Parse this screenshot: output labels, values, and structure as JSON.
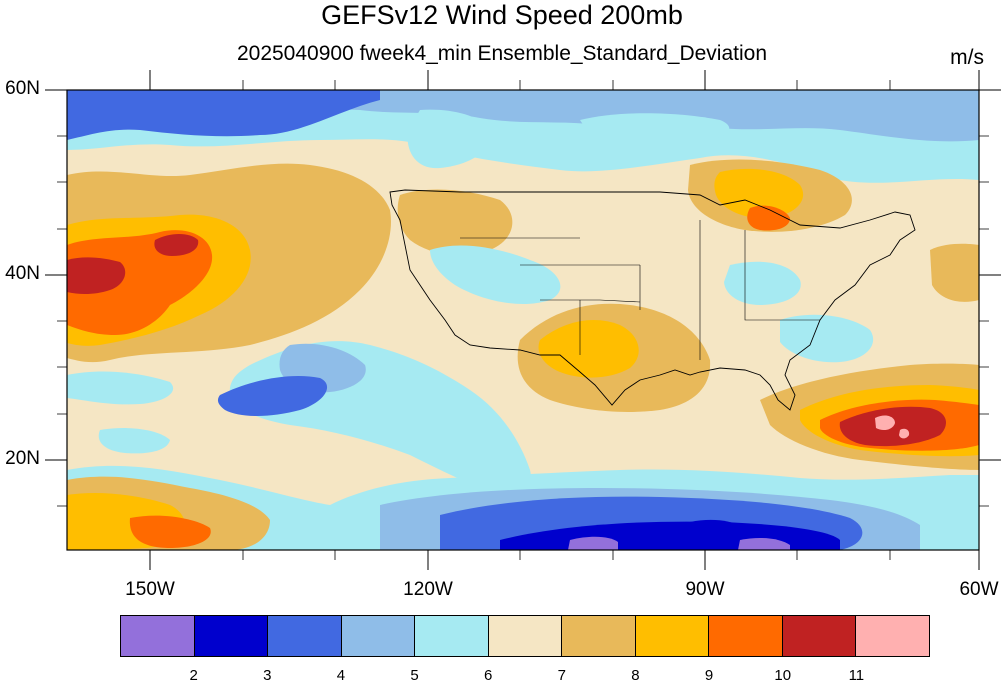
{
  "header": {
    "title": "GEFSv12 Wind Speed 200mb",
    "subtitle": "2025040900 fweek4_min Ensemble_Standard_Deviation",
    "units": "m/s"
  },
  "map": {
    "lat_labels": [
      "60N",
      "40N",
      "20N"
    ],
    "lon_labels": [
      "150W",
      "120W",
      "90W",
      "60W"
    ],
    "lat_range": [
      10,
      60
    ],
    "lon_range": [
      -160,
      -60
    ]
  },
  "colorbar": {
    "colors": [
      "#9370db",
      "#0000cd",
      "#4169e1",
      "#8fbde8",
      "#a6eaf2",
      "#f5e6c4",
      "#e8b95a",
      "#ffbe00",
      "#ff6a00",
      "#c02222",
      "#ffb0b0"
    ],
    "labels": [
      "2",
      "3",
      "4",
      "5",
      "6",
      "7",
      "8",
      "9",
      "10",
      "11"
    ]
  },
  "colors": {
    "c2": "#9370db",
    "c3": "#0000cd",
    "c4": "#4169e1",
    "c5": "#8fbde8",
    "c6": "#a6eaf2",
    "c7": "#f5e6c4",
    "c8": "#e8b95a",
    "c9": "#ffbe00",
    "c10": "#ff6a00",
    "c11": "#c02222",
    "c12": "#ffb0b0"
  }
}
